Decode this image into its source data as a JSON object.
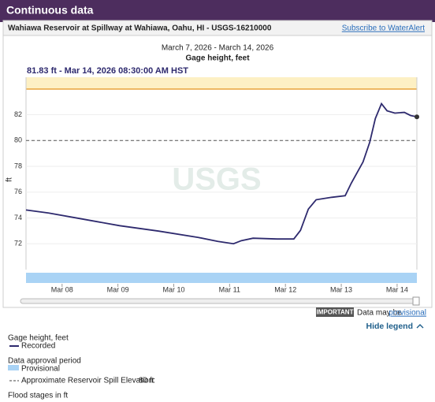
{
  "header": {
    "title": "Continuous data",
    "site": "Wahiawa Reservoir at Spillway at Wahiawa, Oahu, HI - USGS-16210000",
    "link": "Subscribe to WaterAlert"
  },
  "chart_data": {
    "type": "line",
    "subtitle": "March 7, 2026 - March 14, 2026",
    "title": "Gage height, feet",
    "latest": "81.83 ft - Mar 14, 2026 08:30:00 AM HST",
    "ylabel": "ft",
    "xlim": [
      7.354,
      14.354
    ],
    "xticks": [
      {
        "value": 8,
        "label": "Mar 08"
      },
      {
        "value": 9,
        "label": "Mar 09"
      },
      {
        "value": 10,
        "label": "Mar 10"
      },
      {
        "value": 11,
        "label": "Mar 11"
      },
      {
        "value": 12,
        "label": "Mar 12"
      },
      {
        "value": 13,
        "label": "Mar 13"
      },
      {
        "value": 14,
        "label": "Mar 14"
      }
    ],
    "ylim": [
      70,
      84.9
    ],
    "yticks": [
      72,
      74,
      76,
      78,
      80,
      82
    ],
    "x": [
      7.354,
      7.76,
      8.32,
      9.03,
      9.73,
      10.44,
      10.79,
      11.07,
      11.21,
      11.42,
      11.85,
      12.15,
      12.27,
      12.41,
      12.55,
      12.83,
      13.07,
      13.18,
      13.39,
      13.51,
      13.61,
      13.72,
      13.82,
      13.96,
      14.13,
      14.24,
      14.354
    ],
    "series": [
      {
        "name": "Recorded",
        "color": "#2e2a6e",
        "values": [
          74.62,
          74.38,
          73.95,
          73.4,
          72.98,
          72.49,
          72.18,
          72.0,
          72.24,
          72.43,
          72.37,
          72.37,
          73.04,
          74.68,
          75.41,
          75.6,
          75.72,
          76.7,
          78.34,
          79.87,
          81.7,
          82.85,
          82.3,
          82.12,
          82.18,
          81.94,
          81.83
        ]
      }
    ],
    "approval": {
      "name": "Provisional",
      "color": "#a9d3f5"
    },
    "reference_line": {
      "label": "Approximate Reservoir Spill Elevation:",
      "value": 80,
      "value_label": "80 ft"
    }
  },
  "notice": {
    "badge": "IMPORTANT",
    "text": "Data may be",
    "link": "provisional"
  },
  "legend": {
    "toggle": "Hide legend",
    "heading": "Gage height, feet",
    "approval_heading": "Data approval period",
    "flood_heading": "Flood stages in ft"
  }
}
